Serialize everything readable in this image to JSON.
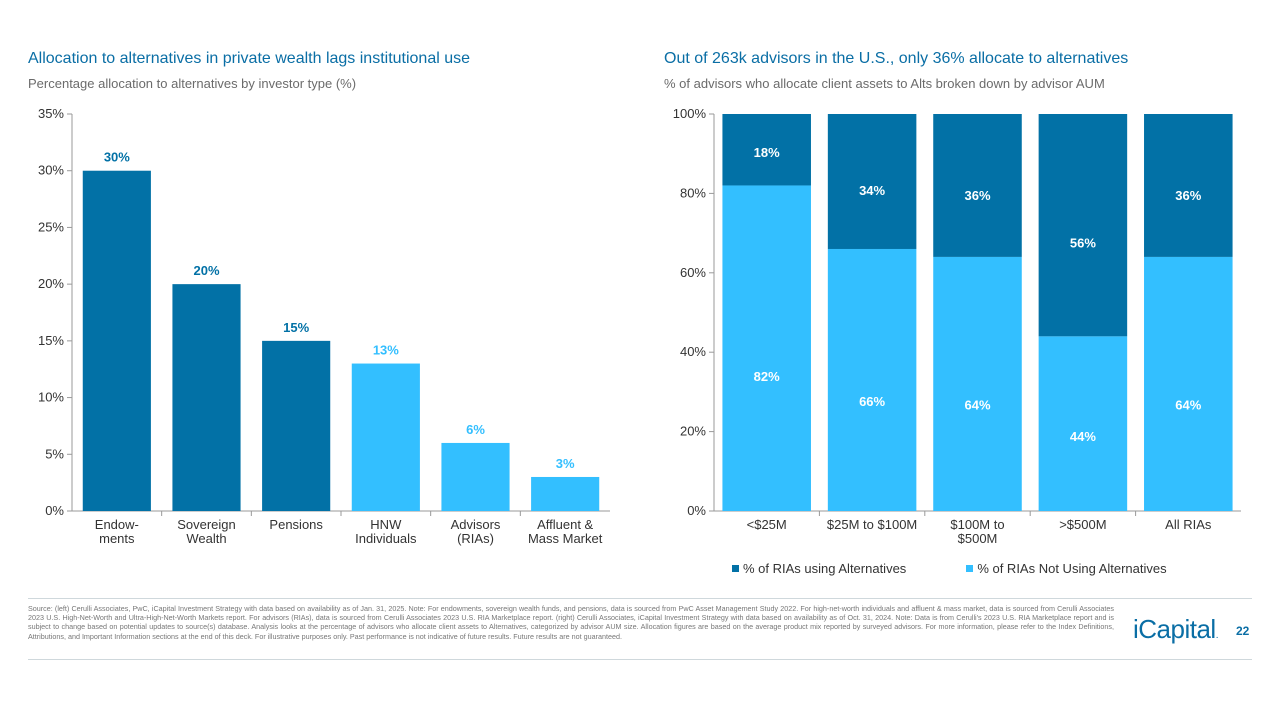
{
  "colors": {
    "dark": "#0271a6",
    "light": "#33bfff",
    "title": "#0a6ea5"
  },
  "left_title": "Allocation to alternatives in private wealth lags institutional use",
  "left_subtitle": "Percentage allocation to alternatives by investor type (%)",
  "right_title": "Out of 263k advisors in the U.S., only 36% allocate to alternatives",
  "right_subtitle": "% of advisors who allocate client assets to Alts broken down by advisor AUM",
  "chart_data": [
    {
      "type": "bar",
      "title": "Allocation to alternatives in private wealth lags institutional use",
      "ylabel": "Percentage allocation to alternatives by investor type (%)",
      "ylim": [
        0,
        35
      ],
      "yticks": [
        0,
        5,
        10,
        15,
        20,
        25,
        30,
        35
      ],
      "ytick_labels": [
        "0%",
        "5%",
        "10%",
        "15%",
        "20%",
        "25%",
        "30%",
        "35%"
      ],
      "categories": [
        [
          "Endow-",
          "ments"
        ],
        [
          "Sovereign",
          "Wealth"
        ],
        [
          "Pensions"
        ],
        [
          "HNW",
          "Individuals"
        ],
        [
          "Advisors",
          "(RIAs)"
        ],
        [
          "Affluent &",
          "Mass Market"
        ]
      ],
      "values": [
        30,
        20,
        15,
        13,
        6,
        3
      ],
      "value_labels": [
        "30%",
        "20%",
        "15%",
        "13%",
        "6%",
        "3%"
      ],
      "bar_colors": [
        "dark",
        "dark",
        "dark",
        "light",
        "light",
        "light"
      ]
    },
    {
      "type": "bar",
      "stacked": true,
      "title": "Out of 263k advisors in the U.S., only 36% allocate to alternatives",
      "ylabel": "% of advisors who allocate client assets to Alts broken down by advisor AUM",
      "ylim": [
        0,
        100
      ],
      "yticks": [
        0,
        20,
        40,
        60,
        80,
        100
      ],
      "ytick_labels": [
        "0%",
        "20%",
        "40%",
        "60%",
        "80%",
        "100%"
      ],
      "categories": [
        [
          "<$25M"
        ],
        [
          "$25M to $100M"
        ],
        [
          "$100M to",
          "$500M"
        ],
        [
          ">$500M"
        ],
        [
          "All RIAs"
        ]
      ],
      "series": [
        {
          "name": "% of RIAs Not Using Alternatives",
          "color": "light",
          "values": [
            82,
            66,
            64,
            44,
            64
          ],
          "labels": [
            "82%",
            "66%",
            "64%",
            "44%",
            "64%"
          ]
        },
        {
          "name": "% of RIAs using Alternatives",
          "color": "dark",
          "values": [
            18,
            34,
            36,
            56,
            36
          ],
          "labels": [
            "18%",
            "34%",
            "36%",
            "56%",
            "36%"
          ]
        }
      ],
      "legend": [
        "% of RIAs using Alternatives",
        "% of RIAs Not Using Alternatives"
      ]
    }
  ],
  "footnote": "Source: (left) Cerulli Associates, PwC, iCapital Investment Strategy with data based on availability as of Jan. 31, 2025. Note: For endowments, sovereign wealth funds, and pensions, data is sourced from PwC Asset Management Study 2022. For high-net-worth individuals and affluent & mass market, data is sourced from Cerulli Associates 2023 U.S. High-Net-Worth and Ultra-High-Net-Worth Markets report. For advisors (RIAs), data is sourced from Cerulli Associates 2023 U.S. RIA Marketplace report. (right) Cerulli Associates, iCapital Investment Strategy with data based on availability as of Oct. 31, 2024. Note: Data is from Cerulli's 2023 U.S. RIA Marketplace report and is subject to change based on potential updates to source(s) database. Analysis looks at the percentage of advisors who allocate client assets to Alternatives, categorized by advisor AUM size. Allocation figures are based on the average product mix reported by surveyed advisors. For more information, please refer to the Index Definitions, Attributions, and Important Information sections at the end of this deck. For illustrative purposes only. Past performance is not indicative of future results. Future results are not guaranteed.",
  "brand": "iCapital",
  "brand_mark": ".",
  "page_number": "22"
}
